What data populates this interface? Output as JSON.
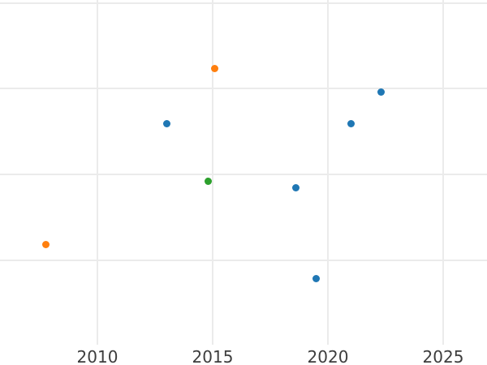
{
  "chart_data": {
    "type": "scatter",
    "title": "",
    "xlabel": "",
    "ylabel": "",
    "grid": true,
    "legend_position": "none",
    "x_ticks": [
      2010,
      2015,
      2020,
      2025
    ],
    "x_tick_labels": [
      "2010",
      "2015",
      "2020",
      "2025"
    ],
    "x_range_visible": [
      2005.8,
      2026.9
    ],
    "y_tick_labels_visible": false,
    "y_gridline_units": [
      0,
      1,
      2,
      3
    ],
    "y_range_visible": [
      -0.98,
      3.03
    ],
    "y_note": "y-axis tick labels are cropped out of view; y values expressed in units of visible horizontal gridlines (0 = lowest visible gridline)",
    "series": [
      {
        "name": "blue-series",
        "color": "#1f77b4",
        "points": [
          {
            "x": 2013.0,
            "y": 1.59
          },
          {
            "x": 2018.6,
            "y": 0.85
          },
          {
            "x": 2019.5,
            "y": -0.21
          },
          {
            "x": 2021.0,
            "y": 1.59
          },
          {
            "x": 2022.3,
            "y": 1.96
          }
        ]
      },
      {
        "name": "orange-series",
        "color": "#ff7f0e",
        "points": [
          {
            "x": 2007.75,
            "y": 0.18
          },
          {
            "x": 2015.1,
            "y": 2.23
          }
        ]
      },
      {
        "name": "green-series",
        "color": "#2ca02c",
        "points": [
          {
            "x": 2014.8,
            "y": 0.92
          }
        ]
      }
    ]
  },
  "colors": {
    "background": "#ffffff",
    "gridline": "#ebebeb",
    "tick_label": "#3d3d3d"
  }
}
